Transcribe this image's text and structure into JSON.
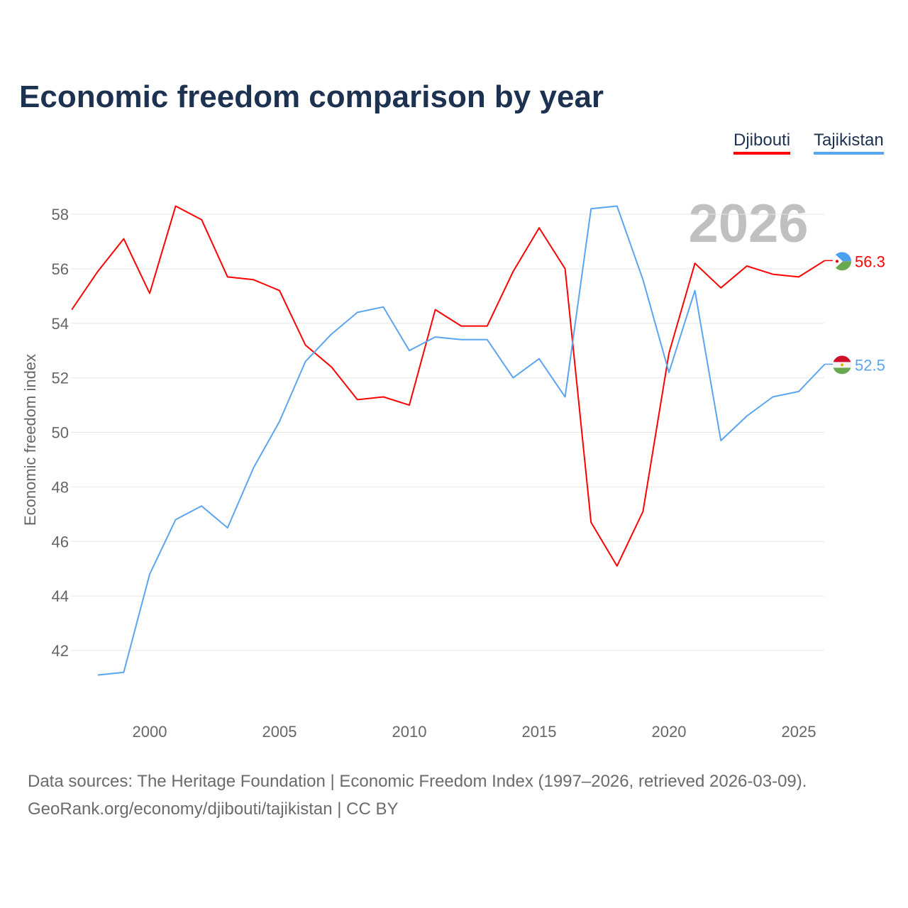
{
  "title": "Economic freedom comparison by year",
  "legend": [
    "Djibouti",
    "Tajikistan"
  ],
  "footer": {
    "line1": "Data sources: The Heritage Foundation | Economic Freedom Index (1997–2026, retrieved 2026-03-09).",
    "line2": "GeoRank.org/economy/djibouti/tajikistan | CC BY"
  },
  "chart_data": {
    "type": "line",
    "title": "Economic freedom comparison by year",
    "xlabel": "",
    "ylabel": "Economic freedom index",
    "year_watermark": "2026",
    "xlim": [
      1997,
      2026
    ],
    "ylim": [
      40,
      59.3
    ],
    "xticks": [
      2000,
      2005,
      2010,
      2015,
      2020,
      2025
    ],
    "yticks": [
      42,
      44,
      46,
      48,
      50,
      52,
      54,
      56,
      58
    ],
    "grid": true,
    "legend_position": "top-right",
    "series": [
      {
        "name": "Djibouti",
        "color": "#ff0000",
        "end_label": "56.3",
        "x": [
          1997,
          1998,
          1999,
          2000,
          2001,
          2002,
          2003,
          2004,
          2005,
          2006,
          2007,
          2008,
          2009,
          2010,
          2011,
          2012,
          2013,
          2014,
          2015,
          2016,
          2017,
          2018,
          2019,
          2020,
          2021,
          2022,
          2023,
          2024,
          2025,
          2026
        ],
        "values": [
          54.5,
          55.9,
          57.1,
          55.1,
          58.3,
          57.8,
          55.7,
          55.6,
          55.2,
          53.2,
          52.4,
          51.2,
          51.3,
          51.0,
          54.5,
          53.9,
          53.9,
          55.9,
          57.5,
          56.0,
          46.7,
          45.1,
          47.1,
          52.9,
          56.2,
          55.3,
          56.1,
          55.8,
          55.7,
          56.3
        ]
      },
      {
        "name": "Tajikistan",
        "color": "#5aa5ef",
        "end_label": "52.5",
        "x": [
          1998,
          1999,
          2000,
          2001,
          2002,
          2003,
          2004,
          2005,
          2006,
          2007,
          2008,
          2009,
          2010,
          2011,
          2012,
          2013,
          2014,
          2015,
          2016,
          2017,
          2018,
          2019,
          2020,
          2021,
          2022,
          2023,
          2024,
          2025,
          2026
        ],
        "values": [
          41.1,
          41.2,
          44.8,
          46.8,
          47.3,
          46.5,
          48.7,
          50.4,
          52.6,
          53.6,
          54.4,
          54.6,
          53.0,
          53.5,
          53.4,
          53.4,
          52.0,
          52.7,
          51.3,
          58.2,
          58.3,
          55.6,
          52.2,
          55.2,
          49.7,
          50.6,
          51.3,
          51.5,
          52.5
        ]
      }
    ]
  }
}
